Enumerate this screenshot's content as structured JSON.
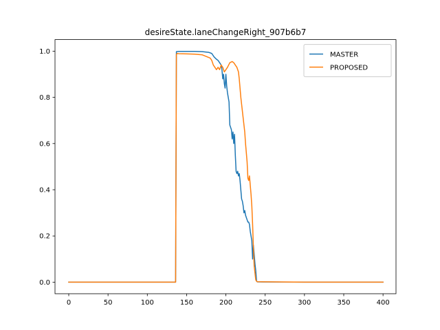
{
  "chart_data": {
    "type": "line",
    "title": "desireState.laneChangeRight_907b6b7",
    "xlabel": "",
    "ylabel": "",
    "xlim": [
      -17.5,
      416.5
    ],
    "ylim": [
      -0.05,
      1.05
    ],
    "xticks": [
      0,
      50,
      100,
      150,
      200,
      250,
      300,
      350,
      400
    ],
    "yticks": [
      0.0,
      0.2,
      0.4,
      0.6,
      0.8,
      1.0
    ],
    "grid": false,
    "legend_position": "upper right",
    "series": [
      {
        "name": "MASTER",
        "color": "#1f77b4",
        "points": [
          [
            0,
            0.0
          ],
          [
            136,
            0.0
          ],
          [
            137,
            0.998
          ],
          [
            140,
            0.999
          ],
          [
            150,
            0.999
          ],
          [
            160,
            0.999
          ],
          [
            170,
            0.998
          ],
          [
            178,
            0.995
          ],
          [
            182,
            0.99
          ],
          [
            185,
            0.975
          ],
          [
            188,
            0.965
          ],
          [
            190,
            0.96
          ],
          [
            192,
            0.95
          ],
          [
            194,
            0.94
          ],
          [
            195,
            0.92
          ],
          [
            196,
            0.88
          ],
          [
            197,
            0.9
          ],
          [
            198,
            0.86
          ],
          [
            199,
            0.84
          ],
          [
            200,
            0.9
          ],
          [
            201,
            0.85
          ],
          [
            202,
            0.82
          ],
          [
            203,
            0.8
          ],
          [
            204,
            0.78
          ],
          [
            205,
            0.68
          ],
          [
            206,
            0.67
          ],
          [
            207,
            0.66
          ],
          [
            208,
            0.62
          ],
          [
            209,
            0.65
          ],
          [
            210,
            0.6
          ],
          [
            211,
            0.64
          ],
          [
            212,
            0.55
          ],
          [
            213,
            0.48
          ],
          [
            214,
            0.47
          ],
          [
            215,
            0.48
          ],
          [
            216,
            0.46
          ],
          [
            217,
            0.47
          ],
          [
            218,
            0.44
          ],
          [
            219,
            0.4
          ],
          [
            220,
            0.36
          ],
          [
            221,
            0.35
          ],
          [
            222,
            0.33
          ],
          [
            223,
            0.3
          ],
          [
            224,
            0.31
          ],
          [
            225,
            0.29
          ],
          [
            226,
            0.28
          ],
          [
            227,
            0.27
          ],
          [
            228,
            0.26
          ],
          [
            229,
            0.26
          ],
          [
            230,
            0.25
          ],
          [
            231,
            0.22
          ],
          [
            232,
            0.2
          ],
          [
            233,
            0.18
          ],
          [
            234,
            0.1
          ],
          [
            235,
            0.16
          ],
          [
            236,
            0.12
          ],
          [
            237,
            0.08
          ],
          [
            238,
            0.05
          ],
          [
            239,
            0.005
          ],
          [
            240,
            0.001
          ],
          [
            300,
            0.0
          ],
          [
            350,
            0.0
          ],
          [
            400,
            0.0
          ]
        ]
      },
      {
        "name": "PROPOSED",
        "color": "#ff7f0e",
        "points": [
          [
            0,
            0.0
          ],
          [
            136,
            0.0
          ],
          [
            137,
            0.985
          ],
          [
            138,
            0.99
          ],
          [
            140,
            0.989
          ],
          [
            150,
            0.988
          ],
          [
            160,
            0.987
          ],
          [
            170,
            0.984
          ],
          [
            180,
            0.97
          ],
          [
            182,
            0.96
          ],
          [
            184,
            0.94
          ],
          [
            186,
            0.93
          ],
          [
            188,
            0.92
          ],
          [
            190,
            0.93
          ],
          [
            192,
            0.92
          ],
          [
            194,
            0.94
          ],
          [
            196,
            0.93
          ],
          [
            198,
            0.91
          ],
          [
            200,
            0.92
          ],
          [
            202,
            0.93
          ],
          [
            205,
            0.95
          ],
          [
            208,
            0.955
          ],
          [
            210,
            0.95
          ],
          [
            212,
            0.94
          ],
          [
            214,
            0.93
          ],
          [
            216,
            0.91
          ],
          [
            217,
            0.88
          ],
          [
            218,
            0.84
          ],
          [
            219,
            0.8
          ],
          [
            220,
            0.77
          ],
          [
            221,
            0.74
          ],
          [
            222,
            0.71
          ],
          [
            223,
            0.68
          ],
          [
            224,
            0.65
          ],
          [
            225,
            0.6
          ],
          [
            226,
            0.56
          ],
          [
            227,
            0.52
          ],
          [
            228,
            0.45
          ],
          [
            229,
            0.44
          ],
          [
            230,
            0.46
          ],
          [
            231,
            0.42
          ],
          [
            232,
            0.38
          ],
          [
            233,
            0.33
          ],
          [
            234,
            0.25
          ],
          [
            235,
            0.15
          ],
          [
            236,
            0.07
          ],
          [
            237,
            0.04
          ],
          [
            238,
            0.01
          ],
          [
            239,
            0.004
          ],
          [
            240,
            0.002
          ],
          [
            260,
            0.001
          ],
          [
            300,
            0.0
          ],
          [
            350,
            0.0
          ],
          [
            400,
            0.0
          ]
        ]
      }
    ]
  }
}
